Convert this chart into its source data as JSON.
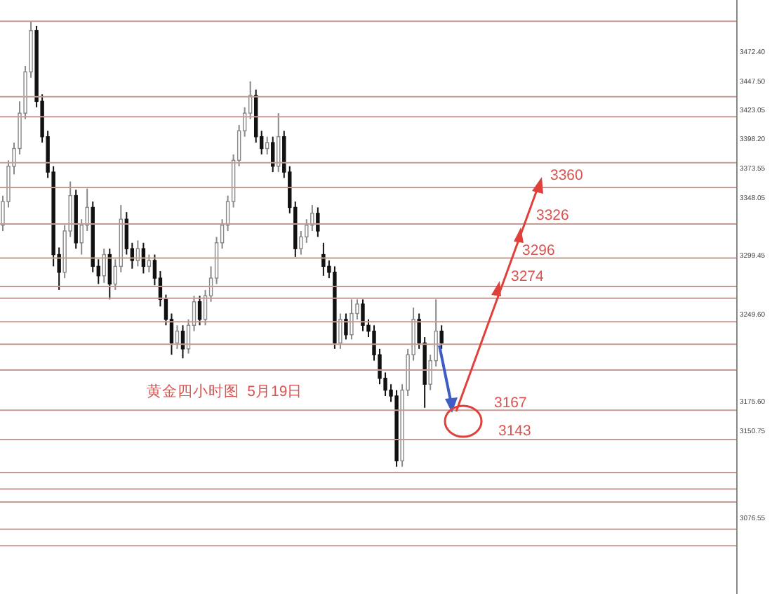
{
  "chart_data": {
    "type": "candlestick",
    "categories": [
      null,
      null,
      null,
      null,
      null,
      null,
      null,
      null,
      null,
      null,
      null,
      null,
      null,
      null,
      null,
      null,
      null,
      null,
      null,
      null,
      null,
      null,
      null,
      null,
      null,
      null,
      null,
      null,
      null,
      null,
      null,
      null,
      null,
      null,
      null,
      null,
      null,
      null,
      null,
      null,
      null,
      null,
      null,
      null,
      null,
      null,
      null,
      null,
      null,
      null,
      null,
      null,
      null,
      null,
      null,
      null,
      null,
      null,
      null,
      null,
      null,
      null,
      null,
      null,
      null,
      null,
      null,
      null,
      null,
      null,
      null,
      null,
      null,
      null,
      null,
      null,
      null,
      null,
      null,
      null,
      null,
      null,
      null,
      null,
      null,
      null,
      null,
      null,
      null,
      null,
      null,
      null,
      null,
      null,
      null,
      null,
      null,
      null,
      null,
      null,
      null,
      null,
      null,
      null,
      null,
      null,
      null,
      null,
      null,
      null,
      null,
      null,
      null,
      null,
      null,
      null,
      null,
      null,
      null,
      null,
      null,
      null,
      null,
      null,
      null,
      null,
      null,
      null,
      null,
      null,
      null
    ],
    "ohlc": [
      [
        3325,
        3350,
        3320,
        3345
      ],
      [
        3345,
        3380,
        3340,
        3375
      ],
      [
        3375,
        3395,
        3368,
        3390
      ],
      [
        3390,
        3430,
        3385,
        3420
      ],
      [
        3420,
        3460,
        3415,
        3455
      ],
      [
        3455,
        3498,
        3450,
        3490
      ],
      [
        3490,
        3494,
        3425,
        3430
      ],
      [
        3430,
        3436,
        3395,
        3400
      ],
      [
        3400,
        3405,
        3365,
        3370
      ],
      [
        3370,
        3375,
        3290,
        3300
      ],
      [
        3300,
        3306,
        3270,
        3285
      ],
      [
        3285,
        3325,
        3280,
        3320
      ],
      [
        3320,
        3362,
        3315,
        3350
      ],
      [
        3350,
        3355,
        3305,
        3310
      ],
      [
        3310,
        3330,
        3300,
        3325
      ],
      [
        3325,
        3356,
        3320,
        3340
      ],
      [
        3340,
        3345,
        3285,
        3290
      ],
      [
        3290,
        3296,
        3275,
        3282
      ],
      [
        3282,
        3305,
        3276,
        3300
      ],
      [
        3300,
        3305,
        3262,
        3275
      ],
      [
        3275,
        3296,
        3270,
        3290
      ],
      [
        3290,
        3342,
        3285,
        3330
      ],
      [
        3330,
        3336,
        3300,
        3305
      ],
      [
        3305,
        3310,
        3288,
        3295
      ],
      [
        3295,
        3312,
        3290,
        3305
      ],
      [
        3305,
        3310,
        3284,
        3290
      ],
      [
        3290,
        3300,
        3285,
        3295
      ],
      [
        3295,
        3300,
        3274,
        3280
      ],
      [
        3280,
        3286,
        3256,
        3262
      ],
      [
        3262,
        3266,
        3240,
        3245
      ],
      [
        3245,
        3250,
        3215,
        3225
      ],
      [
        3225,
        3240,
        3220,
        3235
      ],
      [
        3235,
        3240,
        3212,
        3220
      ],
      [
        3220,
        3245,
        3216,
        3240
      ],
      [
        3240,
        3265,
        3235,
        3260
      ],
      [
        3260,
        3265,
        3240,
        3245
      ],
      [
        3245,
        3270,
        3240,
        3265
      ],
      [
        3265,
        3290,
        3260,
        3280
      ],
      [
        3280,
        3315,
        3275,
        3310
      ],
      [
        3310,
        3330,
        3305,
        3325
      ],
      [
        3325,
        3350,
        3320,
        3345
      ],
      [
        3345,
        3385,
        3340,
        3380
      ],
      [
        3380,
        3410,
        3375,
        3405
      ],
      [
        3405,
        3425,
        3400,
        3420
      ],
      [
        3420,
        3447,
        3415,
        3435
      ],
      [
        3435,
        3440,
        3395,
        3400
      ],
      [
        3400,
        3405,
        3385,
        3390
      ],
      [
        3390,
        3400,
        3385,
        3395
      ],
      [
        3395,
        3400,
        3370,
        3375
      ],
      [
        3375,
        3420,
        3370,
        3400
      ],
      [
        3400,
        3405,
        3365,
        3370
      ],
      [
        3370,
        3375,
        3335,
        3340
      ],
      [
        3340,
        3345,
        3298,
        3305
      ],
      [
        3305,
        3320,
        3300,
        3315
      ],
      [
        3315,
        3330,
        3310,
        3325
      ],
      [
        3325,
        3342,
        3320,
        3335
      ],
      [
        3335,
        3340,
        3315,
        3320
      ],
      [
        3300,
        3310,
        3282,
        3290
      ],
      [
        3290,
        3295,
        3280,
        3285
      ],
      [
        3285,
        3290,
        3220,
        3225
      ],
      [
        3225,
        3250,
        3220,
        3245
      ],
      [
        3245,
        3250,
        3228,
        3232
      ],
      [
        3232,
        3262,
        3228,
        3250
      ],
      [
        3250,
        3262,
        3245,
        3258
      ],
      [
        3258,
        3262,
        3235,
        3240
      ],
      [
        3240,
        3245,
        3230,
        3235
      ],
      [
        3235,
        3240,
        3210,
        3215
      ],
      [
        3215,
        3220,
        3190,
        3195
      ],
      [
        3195,
        3200,
        3180,
        3185
      ],
      [
        3185,
        3190,
        3175,
        3180
      ],
      [
        3180,
        3185,
        3120,
        3125
      ],
      [
        3125,
        3190,
        3120,
        3185
      ],
      [
        3185,
        3220,
        3180,
        3215
      ],
      [
        3215,
        3255,
        3210,
        3245
      ],
      [
        3245,
        3250,
        3220,
        3225
      ],
      [
        3225,
        3230,
        3170,
        3190
      ],
      [
        3190,
        3215,
        3185,
        3210
      ],
      [
        3210,
        3262,
        3205,
        3235
      ],
      [
        3235,
        3240,
        3220,
        3225
      ],
      null,
      null,
      null,
      null,
      null,
      null,
      null,
      null,
      null,
      null,
      null,
      null,
      null,
      null,
      null,
      null,
      null,
      null,
      null,
      null,
      null,
      null,
      null,
      null,
      null,
      null,
      null,
      null,
      null,
      null,
      null,
      null,
      null,
      null,
      null,
      null,
      null,
      null,
      null,
      null,
      null,
      null,
      null,
      null,
      null,
      null,
      null,
      null,
      null,
      null,
      null,
      null
    ],
    "ylim": [
      3012,
      3516
    ],
    "yticks": [
      {
        "value": 3472.4,
        "label": "3472.40"
      },
      {
        "value": 3447.5,
        "label": "3447.50"
      },
      {
        "value": 3423.05,
        "label": "3423.05"
      },
      {
        "value": 3398.2,
        "label": "3398.20"
      },
      {
        "value": 3373.55,
        "label": "3373.55"
      },
      {
        "value": 3348.05,
        "label": "3348.05"
      },
      {
        "value": 3299.45,
        "label": "3299.45"
      },
      {
        "value": 3249.6,
        "label": "3249.60"
      },
      {
        "value": 3175.6,
        "label": "3175.60"
      },
      {
        "value": 3150.75,
        "label": "3150.75"
      },
      {
        "value": 3076.55,
        "label": "3076.55"
      }
    ],
    "ref_lines": [
      {
        "axis": "y",
        "value": 3498,
        "color": "#c49a92"
      },
      {
        "axis": "y",
        "value": 3434,
        "color": "#c49a92"
      },
      {
        "axis": "y",
        "value": 3417,
        "color": "#c49a92"
      },
      {
        "axis": "y",
        "value": 3378,
        "color": "#c49a92"
      },
      {
        "axis": "y",
        "value": 3357,
        "color": "#c49a92"
      },
      {
        "axis": "y",
        "value": 3326,
        "color": "#c49a92"
      },
      {
        "axis": "y",
        "value": 3297,
        "color": "#c49a92"
      },
      {
        "axis": "y",
        "value": 3273,
        "color": "#c49a92"
      },
      {
        "axis": "y",
        "value": 3263,
        "color": "#c49a92"
      },
      {
        "axis": "y",
        "value": 3243,
        "color": "#c49a92"
      },
      {
        "axis": "y",
        "value": 3224,
        "color": "#c49a92"
      },
      {
        "axis": "y",
        "value": 3202,
        "color": "#c49a92"
      },
      {
        "axis": "y",
        "value": 3168,
        "color": "#c49a92"
      },
      {
        "axis": "y",
        "value": 3143,
        "color": "#c49a92"
      },
      {
        "axis": "y",
        "value": 3115,
        "color": "#c49a92"
      },
      {
        "axis": "y",
        "value": 3101,
        "color": "#c49a92"
      },
      {
        "axis": "y",
        "value": 3090,
        "color": "#c49a92"
      },
      {
        "axis": "y",
        "value": 3067,
        "color": "#c49a92"
      },
      {
        "axis": "y",
        "value": 3053,
        "color": "#c49a92"
      }
    ],
    "annotations": [
      "黄金四小时图  5月19日",
      {
        "text": "3360",
        "y": 3360
      },
      {
        "text": "3326",
        "y": 3326
      },
      {
        "text": "3296",
        "y": 3296
      },
      {
        "text": "3274",
        "y": 3274
      },
      {
        "text": "3167",
        "y": 3167
      },
      {
        "text": "3143",
        "y": 3143
      }
    ],
    "grid": false,
    "legend": false
  }
}
